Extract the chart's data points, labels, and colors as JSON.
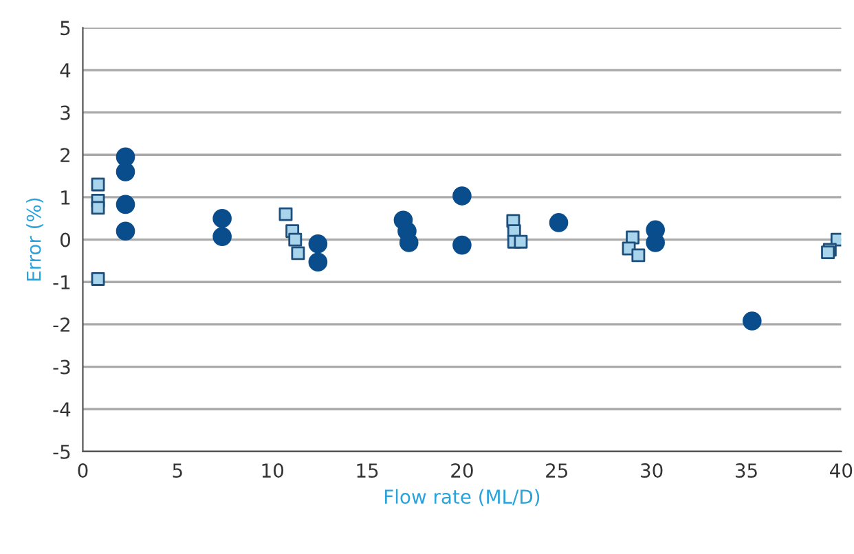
{
  "chart_data": {
    "type": "scatter",
    "xlabel": "Flow rate (ML/D)",
    "ylabel": "Error (%)",
    "xlim": [
      0,
      40
    ],
    "xticks": [
      0,
      5,
      10,
      15,
      20,
      25,
      30,
      35,
      40
    ],
    "ylim": [
      -5,
      5
    ],
    "yticks": [
      -5,
      -4,
      -3,
      -2,
      -1,
      0,
      1,
      2,
      3,
      4,
      5
    ],
    "grid": "y",
    "series": [
      {
        "color": "#0a4d8c",
        "marker": "circle",
        "x": [
          2.25,
          2.25,
          2.25,
          2.25,
          7.35,
          7.35,
          12.4,
          12.4,
          16.9,
          17.1,
          17.2,
          20.0,
          20.0,
          25.1,
          30.2,
          30.2,
          35.3
        ],
        "values": [
          1.95,
          1.6,
          0.83,
          0.2,
          0.5,
          0.07,
          -0.1,
          -0.53,
          0.46,
          0.2,
          -0.07,
          1.03,
          -0.13,
          0.4,
          0.23,
          -0.07,
          -1.92
        ]
      },
      {
        "color": "#a8d4ec",
        "marker": "square",
        "x": [
          0.8,
          0.8,
          0.8,
          0.8,
          10.7,
          11.05,
          11.2,
          11.35,
          22.7,
          22.75,
          22.75,
          23.1,
          29.0,
          28.8,
          29.3,
          39.8,
          39.4,
          39.3
        ],
        "values": [
          1.3,
          0.92,
          0.75,
          -0.93,
          0.6,
          0.2,
          0.0,
          -0.32,
          0.44,
          0.2,
          -0.05,
          -0.05,
          0.05,
          -0.21,
          -0.37,
          0.0,
          -0.24,
          -0.3
        ]
      }
    ]
  }
}
